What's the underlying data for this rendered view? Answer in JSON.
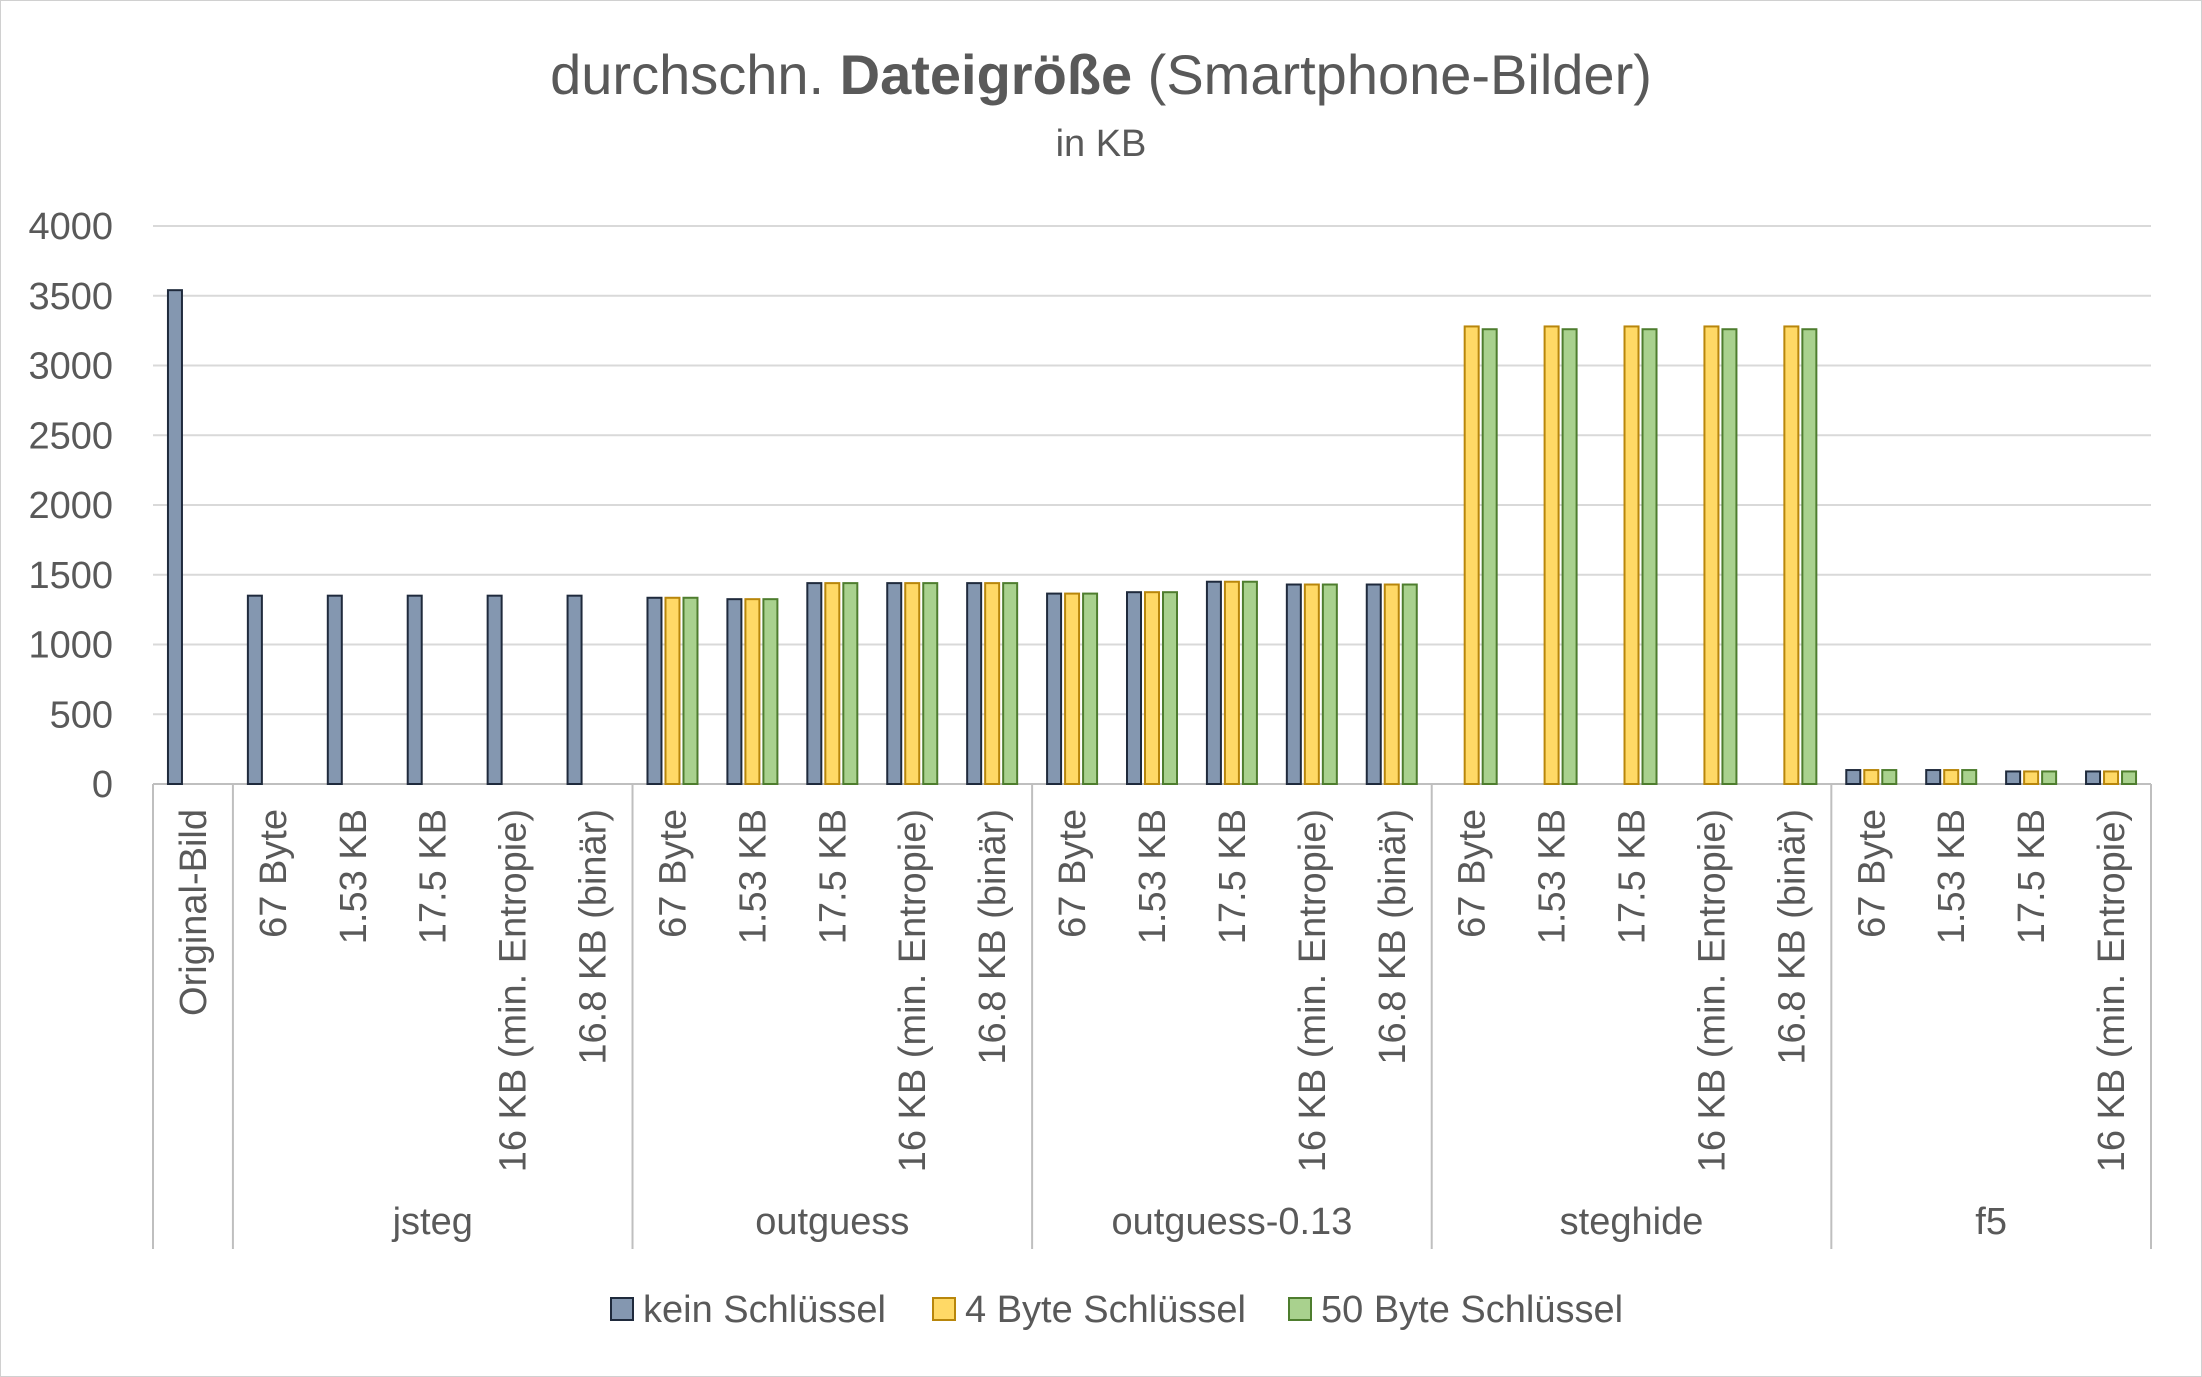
{
  "chart_data": {
    "type": "bar",
    "title": {
      "prefix": "durchschn. ",
      "bold": "Dateigröße",
      "suffix": " (Smartphone-Bilder)"
    },
    "subtitle": "in KB",
    "ylim": [
      0,
      4000
    ],
    "yticks": [
      0,
      500,
      1000,
      1500,
      2000,
      2500,
      3000,
      3500,
      4000
    ],
    "grid": true,
    "legend_position": "bottom",
    "groups": [
      {
        "name": "",
        "categories": [
          "Original-Bild"
        ]
      },
      {
        "name": "jsteg",
        "categories": [
          "67 Byte",
          "1.53 KB",
          "17.5 KB",
          "16 KB (min. Entropie)",
          "16.8 KB (binär)"
        ]
      },
      {
        "name": "outguess",
        "categories": [
          "67 Byte",
          "1.53 KB",
          "17.5 KB",
          "16 KB (min. Entropie)",
          "16.8 KB (binär)"
        ]
      },
      {
        "name": "outguess-0.13",
        "categories": [
          "67 Byte",
          "1.53 KB",
          "17.5 KB",
          "16 KB (min. Entropie)",
          "16.8 KB (binär)"
        ]
      },
      {
        "name": "steghide",
        "categories": [
          "67 Byte",
          "1.53 KB",
          "17.5 KB",
          "16 KB (min. Entropie)",
          "16.8 KB (binär)"
        ]
      },
      {
        "name": "f5",
        "categories": [
          "67 Byte",
          "1.53 KB",
          "17.5 KB",
          "16 KB (min. Entropie)"
        ]
      }
    ],
    "series": [
      {
        "name": "kein Schlüssel",
        "color": "#8497B0",
        "border": "#1F2A3C",
        "values": [
          3540,
          1350,
          1350,
          1350,
          1350,
          1350,
          1335,
          1325,
          1440,
          1440,
          1440,
          1365,
          1375,
          1450,
          1430,
          1430,
          null,
          null,
          null,
          null,
          null,
          100,
          100,
          90,
          90
        ]
      },
      {
        "name": "4 Byte Schlüssel",
        "color": "#FFD966",
        "border": "#B8860B",
        "values": [
          null,
          null,
          null,
          null,
          null,
          null,
          1335,
          1325,
          1440,
          1440,
          1440,
          1365,
          1375,
          1450,
          1430,
          1430,
          3280,
          3280,
          3280,
          3280,
          3280,
          100,
          100,
          90,
          90
        ]
      },
      {
        "name": "50 Byte Schlüssel",
        "color": "#A9D18E",
        "border": "#4E7D2E",
        "values": [
          null,
          null,
          null,
          null,
          null,
          null,
          1335,
          1325,
          1440,
          1440,
          1440,
          1365,
          1375,
          1450,
          1430,
          1430,
          3260,
          3260,
          3260,
          3260,
          3260,
          100,
          100,
          90,
          90
        ]
      }
    ]
  }
}
